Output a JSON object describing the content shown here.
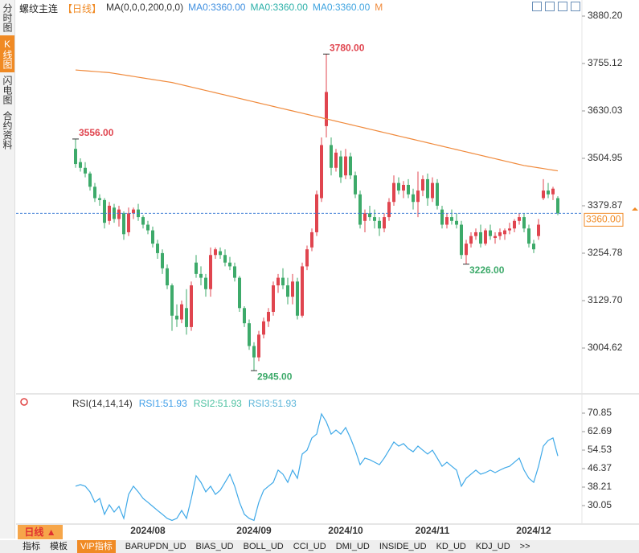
{
  "ui": {
    "side_tabs": [
      "分时图",
      "K线图",
      "闪电图",
      "合约资料"
    ],
    "period_button": "日线",
    "bottom_tabs": [
      "指标",
      "模板",
      "VIP指标",
      "BARUPDN_UD",
      "BIAS_UD",
      "BOLL_UD",
      "CCI_UD",
      "DMI_UD",
      "INSIDE_UD",
      "KD_UD",
      "KDJ_UD",
      ">>"
    ]
  },
  "chart_data": [
    {
      "type": "candlestick",
      "title": "螺纹主连",
      "period": "【日线】",
      "indicator": "MA(0,0,0,200,0,0)",
      "legend": [
        {
          "text": "MA0:3360.00",
          "color": "#3f8fe0"
        },
        {
          "text": "MA0:3360.00",
          "color": "#2bb0a8"
        },
        {
          "text": "MA0:3360.00",
          "color": "#3fa4e0"
        },
        {
          "text": "M",
          "color": "#f08a3c"
        }
      ],
      "up_color": "#e0454f",
      "down_color": "#3daa6a",
      "categories": [
        null,
        null,
        null,
        null,
        null,
        null,
        null,
        null,
        null,
        null,
        null,
        null,
        null,
        null,
        null,
        "2024/08",
        null,
        null,
        null,
        null,
        null,
        null,
        null,
        null,
        null,
        null,
        null,
        null,
        null,
        null,
        null,
        null,
        null,
        null,
        null,
        null,
        null,
        "2024/09",
        null,
        null,
        null,
        null,
        null,
        null,
        null,
        null,
        null,
        null,
        null,
        null,
        null,
        null,
        null,
        null,
        null,
        null,
        "2024/10",
        null,
        null,
        null,
        null,
        null,
        null,
        null,
        null,
        null,
        null,
        null,
        null,
        null,
        null,
        null,
        null,
        null,
        "2024/11",
        null,
        null,
        null,
        null,
        null,
        null,
        null,
        null,
        null,
        null,
        null,
        null,
        null,
        null,
        null,
        null,
        null,
        null,
        null,
        null,
        "2024/12",
        null,
        null,
        null,
        null,
        null
      ],
      "candles": [
        [
          3530,
          3556,
          3480,
          3490
        ],
        [
          3495,
          3505,
          3470,
          3480
        ],
        [
          3480,
          3495,
          3455,
          3465
        ],
        [
          3465,
          3470,
          3420,
          3430
        ],
        [
          3430,
          3440,
          3390,
          3400
        ],
        [
          3400,
          3410,
          3380,
          3395
        ],
        [
          3395,
          3400,
          3320,
          3335
        ],
        [
          3340,
          3390,
          3330,
          3380
        ],
        [
          3375,
          3385,
          3335,
          3345
        ],
        [
          3345,
          3380,
          3325,
          3370
        ],
        [
          3360,
          3365,
          3290,
          3305
        ],
        [
          3310,
          3375,
          3300,
          3360
        ],
        [
          3360,
          3375,
          3345,
          3370
        ],
        [
          3370,
          3385,
          3340,
          3350
        ],
        [
          3350,
          3355,
          3320,
          3330
        ],
        [
          3330,
          3340,
          3305,
          3315
        ],
        [
          3315,
          3325,
          3270,
          3280
        ],
        [
          3280,
          3290,
          3240,
          3255
        ],
        [
          3255,
          3265,
          3200,
          3215
        ],
        [
          3215,
          3225,
          3160,
          3170
        ],
        [
          3170,
          3175,
          3050,
          3090
        ],
        [
          3090,
          3120,
          3060,
          3080
        ],
        [
          3080,
          3130,
          3070,
          3120
        ],
        [
          3110,
          3160,
          3040,
          3060
        ],
        [
          3060,
          3180,
          3050,
          3170
        ],
        [
          3230,
          3250,
          3190,
          3200
        ],
        [
          3200,
          3220,
          3170,
          3190
        ],
        [
          3190,
          3200,
          3140,
          3160
        ],
        [
          3160,
          3270,
          3140,
          3250
        ],
        [
          3250,
          3270,
          3240,
          3265
        ],
        [
          3260,
          3270,
          3240,
          3250
        ],
        [
          3250,
          3265,
          3220,
          3230
        ],
        [
          3230,
          3245,
          3210,
          3220
        ],
        [
          3220,
          3230,
          3180,
          3190
        ],
        [
          3190,
          3195,
          3100,
          3110
        ],
        [
          3110,
          3115,
          3060,
          3070
        ],
        [
          3070,
          3080,
          3000,
          3010
        ],
        [
          3010,
          3020,
          2945,
          2980
        ],
        [
          2980,
          3050,
          2970,
          3040
        ],
        [
          3040,
          3085,
          3030,
          3075
        ],
        [
          3075,
          3110,
          3060,
          3100
        ],
        [
          3100,
          3180,
          3090,
          3170
        ],
        [
          3170,
          3200,
          3150,
          3190
        ],
        [
          3190,
          3215,
          3160,
          3170
        ],
        [
          3170,
          3190,
          3120,
          3140
        ],
        [
          3140,
          3200,
          3120,
          3180
        ],
        [
          3180,
          3190,
          3080,
          3090
        ],
        [
          3090,
          3230,
          3085,
          3220
        ],
        [
          3220,
          3275,
          3210,
          3265
        ],
        [
          3270,
          3320,
          3260,
          3310
        ],
        [
          3310,
          3420,
          3300,
          3410
        ],
        [
          3400,
          3560,
          3390,
          3540
        ],
        [
          3590,
          3780,
          3560,
          3680
        ],
        [
          3540,
          3560,
          3460,
          3480
        ],
        [
          3480,
          3530,
          3470,
          3520
        ],
        [
          3510,
          3525,
          3440,
          3455
        ],
        [
          3460,
          3530,
          3450,
          3510
        ],
        [
          3510,
          3520,
          3450,
          3460
        ],
        [
          3460,
          3470,
          3400,
          3410
        ],
        [
          3410,
          3420,
          3320,
          3330
        ],
        [
          3340,
          3370,
          3310,
          3360
        ],
        [
          3360,
          3380,
          3340,
          3350
        ],
        [
          3350,
          3370,
          3320,
          3340
        ],
        [
          3340,
          3350,
          3300,
          3320
        ],
        [
          3320,
          3360,
          3310,
          3350
        ],
        [
          3350,
          3400,
          3340,
          3390
        ],
        [
          3390,
          3460,
          3380,
          3440
        ],
        [
          3440,
          3455,
          3410,
          3420
        ],
        [
          3420,
          3445,
          3400,
          3435
        ],
        [
          3435,
          3450,
          3400,
          3410
        ],
        [
          3410,
          3425,
          3370,
          3390
        ],
        [
          3390,
          3470,
          3350,
          3420
        ],
        [
          3420,
          3460,
          3405,
          3450
        ],
        [
          3450,
          3465,
          3380,
          3400
        ],
        [
          3400,
          3455,
          3390,
          3440
        ],
        [
          3440,
          3450,
          3370,
          3380
        ],
        [
          3370,
          3380,
          3320,
          3330
        ],
        [
          3330,
          3360,
          3320,
          3350
        ],
        [
          3350,
          3370,
          3330,
          3340
        ],
        [
          3340,
          3360,
          3320,
          3330
        ],
        [
          3330,
          3340,
          3240,
          3250
        ],
        [
          3250,
          3290,
          3226,
          3280
        ],
        [
          3280,
          3310,
          3270,
          3300
        ],
        [
          3300,
          3320,
          3290,
          3310
        ],
        [
          3310,
          3330,
          3270,
          3280
        ],
        [
          3280,
          3320,
          3275,
          3315
        ],
        [
          3315,
          3330,
          3290,
          3300
        ],
        [
          3295,
          3310,
          3280,
          3300
        ],
        [
          3300,
          3320,
          3290,
          3310
        ],
        [
          3305,
          3320,
          3290,
          3315
        ],
        [
          3315,
          3335,
          3305,
          3320
        ],
        [
          3320,
          3345,
          3310,
          3340
        ],
        [
          3340,
          3360,
          3330,
          3350
        ],
        [
          3350,
          3360,
          3310,
          3320
        ],
        [
          3320,
          3330,
          3270,
          3280
        ],
        [
          3280,
          3290,
          3255,
          3265
        ],
        [
          3300,
          3345,
          3290,
          3330
        ],
        [
          3400,
          3450,
          3395,
          3420
        ],
        [
          3420,
          3440,
          3400,
          3410
        ],
        [
          3410,
          3430,
          3395,
          3425
        ],
        [
          3400,
          3405,
          3355,
          3360
        ]
      ],
      "series": [
        {
          "color": "#f08a3c",
          "values": [
            3738,
            3737,
            3736,
            3735,
            3734,
            3733,
            3732,
            3731,
            3729,
            3727,
            3725,
            3723,
            3721,
            3719,
            3717,
            3715,
            3713,
            3711,
            3709,
            3707,
            3705,
            3702,
            3699,
            3696,
            3693,
            3690,
            3687,
            3684,
            3681,
            3678,
            3675,
            3672,
            3669,
            3666,
            3663,
            3660,
            3657,
            3654,
            3651,
            3648,
            3645,
            3642,
            3639,
            3636,
            3633,
            3630,
            3627,
            3624,
            3621,
            3618,
            3615,
            3612,
            3609,
            3606,
            3603,
            3600,
            3597,
            3594,
            3591,
            3588,
            3585,
            3582,
            3579,
            3576,
            3573,
            3570,
            3567,
            3564,
            3561,
            3558,
            3555,
            3552,
            3549,
            3546,
            3543,
            3540,
            3537,
            3534,
            3531,
            3528,
            3525,
            3522,
            3519,
            3516,
            3513,
            3510,
            3507,
            3504,
            3501,
            3498,
            3495,
            3492,
            3489,
            3486,
            3484,
            3482,
            3480,
            3478,
            3476,
            3474,
            3472
          ]
        }
      ],
      "annotations": [
        {
          "value": 3556,
          "label": "3556.00"
        },
        {
          "value": 3780,
          "label": "3780.00"
        },
        {
          "value": 2945,
          "label": "2945.00"
        },
        {
          "value": 3226,
          "label": "3226.00"
        }
      ],
      "last_price": {
        "value": 3360,
        "label": "3360.00"
      },
      "ylim": [
        2905,
        3880.2
      ],
      "yticks": [
        {
          "value": 3880.2,
          "label": "3880.20"
        },
        3755.12,
        3630.03,
        3504.95,
        3379.87,
        3254.78,
        {
          "value": 3129.7,
          "label": "3129.70"
        },
        3004.62
      ]
    },
    {
      "type": "line",
      "title": "RSI(14,14,14)",
      "legend": [
        {
          "text": "RSI1:51.93",
          "color": "#3f9ee8"
        },
        {
          "text": "RSI2:51.93",
          "color": "#4cc1a0"
        },
        {
          "text": "RSI3:51.93",
          "color": "#5ab4d8"
        }
      ],
      "series": [
        {
          "color": "#3fa9e8",
          "values": [
            38.6,
            39.3,
            38.6,
            36.1,
            31.5,
            33.2,
            26.2,
            30.4,
            27.2,
            29.7,
            24.4,
            35.0,
            38.6,
            36.1,
            33.2,
            31.5,
            29.7,
            27.9,
            26.2,
            24.4,
            23.5,
            24.4,
            27.9,
            24.4,
            33.2,
            43.2,
            40.3,
            36.1,
            38.6,
            35.0,
            36.8,
            40.3,
            43.9,
            38.6,
            31.5,
            26.2,
            24.4,
            23.5,
            31.5,
            36.8,
            38.6,
            40.3,
            45.7,
            43.9,
            40.3,
            45.7,
            42.1,
            52.8,
            54.5,
            59.9,
            61.6,
            70.5,
            67.0,
            61.6,
            63.4,
            61.6,
            64.5,
            59.9,
            54.5,
            48.1,
            51.0,
            50.3,
            49.2,
            48.1,
            51.0,
            54.5,
            58.1,
            56.3,
            57.4,
            55.2,
            53.8,
            56.3,
            54.5,
            52.8,
            54.5,
            51.0,
            47.4,
            49.2,
            47.4,
            45.7,
            38.6,
            42.1,
            43.9,
            45.7,
            43.9,
            44.6,
            45.7,
            44.6,
            45.7,
            46.7,
            47.4,
            49.2,
            51.0,
            45.7,
            42.1,
            40.3,
            47.4,
            56.3,
            58.8,
            59.9,
            51.93
          ]
        }
      ],
      "ylim": [
        22.6,
        70.85
      ],
      "yticks": [
        70.85,
        62.69,
        54.53,
        46.37,
        38.21,
        30.05
      ]
    }
  ]
}
